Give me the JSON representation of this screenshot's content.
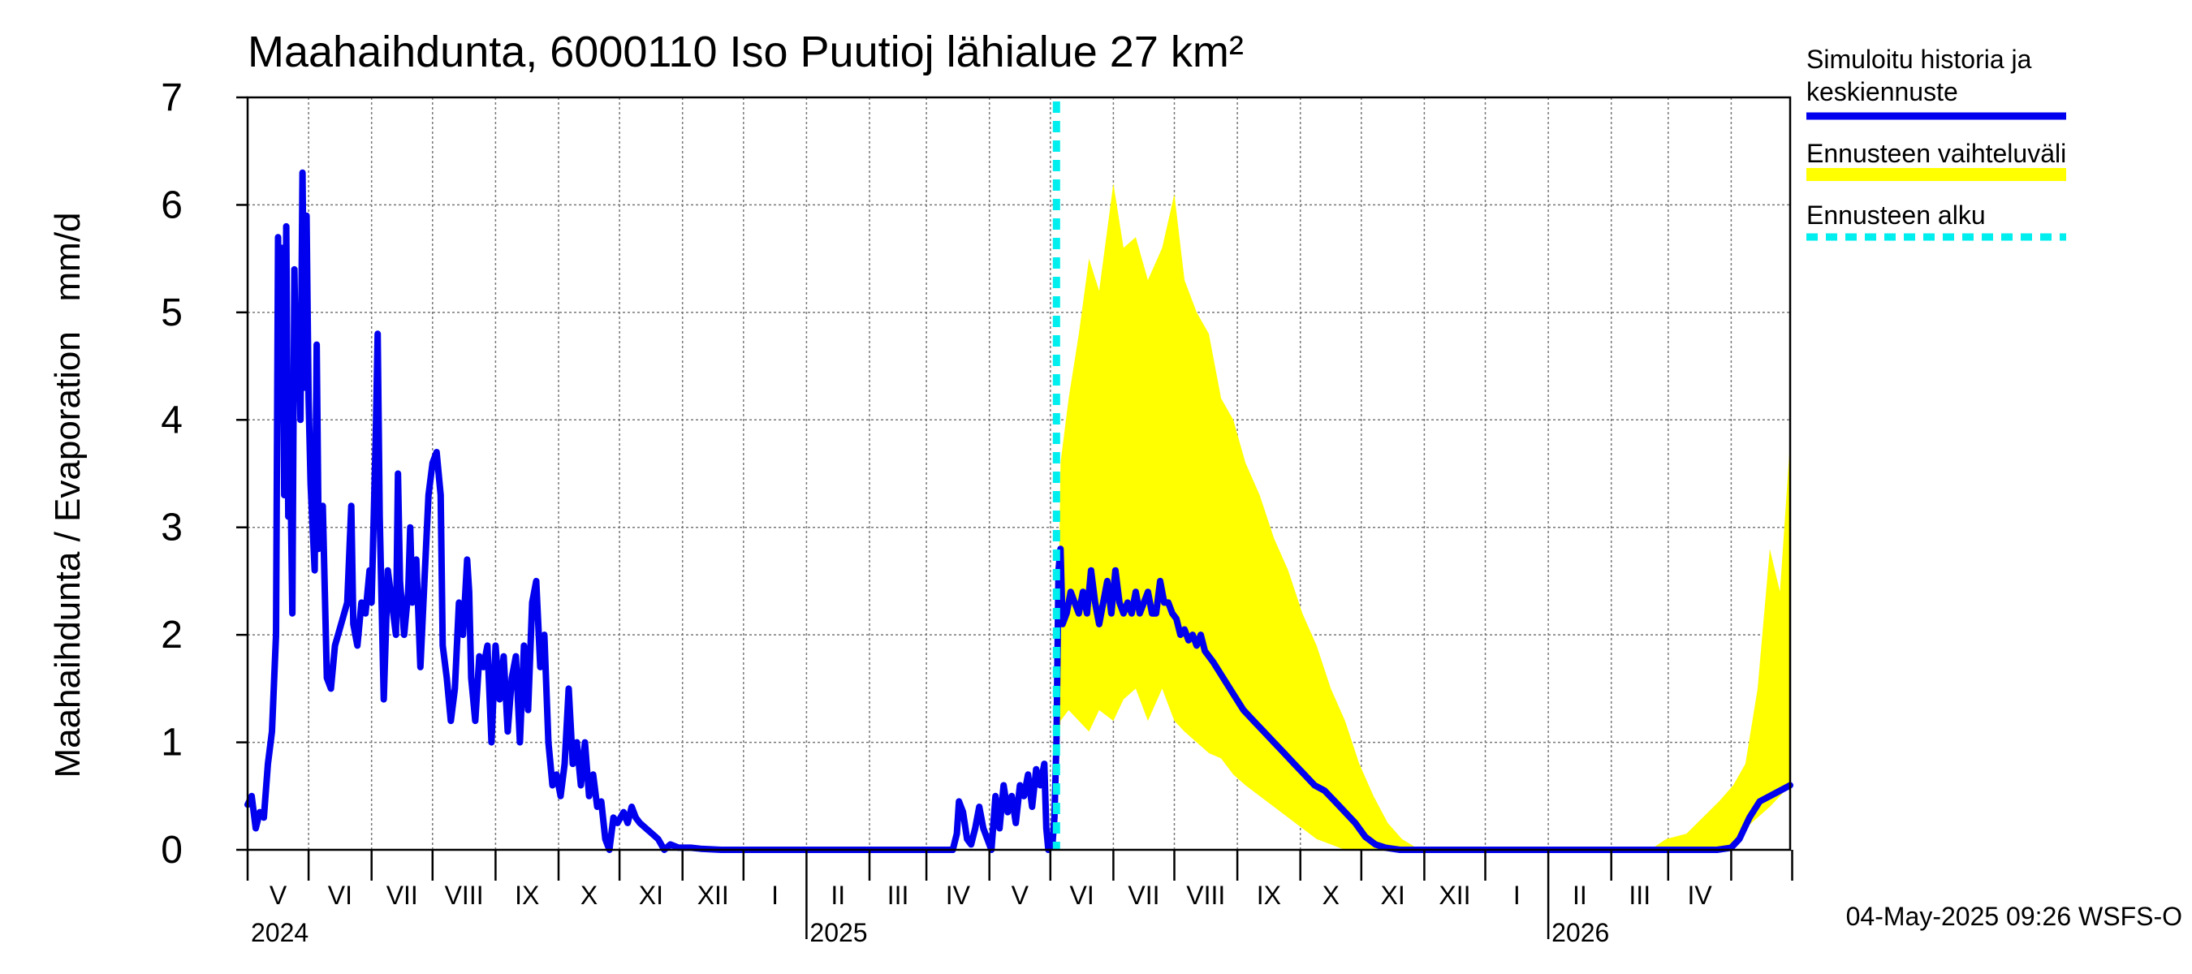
{
  "chart_data": {
    "type": "line",
    "title": "Maahaihdunta, 6000110 Iso Puutioj lähialue 27 km²",
    "ylabel": "Maahaihdunta / Evaporation   mm/d",
    "xlabel": "",
    "ylim": [
      0,
      7
    ],
    "yticks": [
      "0",
      "1",
      "2",
      "3",
      "4",
      "5",
      "6",
      "7"
    ],
    "xlim": [
      "2024-04-01",
      "2026-04-30"
    ],
    "grid": true,
    "legend_position": "right",
    "month_labels": [
      "V",
      "VI",
      "VII",
      "VIII",
      "IX",
      "X",
      "XI",
      "XII",
      "I",
      "II",
      "III",
      "IV",
      "V",
      "VI",
      "VII",
      "VIII",
      "IX",
      "X",
      "XI",
      "XII",
      "I",
      "II",
      "III",
      "IV"
    ],
    "year_labels": [
      "2024",
      "2025",
      "2026"
    ],
    "footer": "04-May-2025 09:26 WSFS-O",
    "colors": {
      "history": "#0000ee",
      "range": "#ffff00",
      "forecast_start": "#00eeee",
      "grid": "#777777"
    },
    "forecast_start": "2025-05-04",
    "legend": [
      {
        "label_line1": "Simuloitu historia ja",
        "label_line2": "keskiennuste"
      },
      {
        "label_line1": "Ennusteen vaihteluväli",
        "label_line2": ""
      },
      {
        "label_line1": "Ennusteen alku",
        "label_line2": ""
      }
    ],
    "series": [
      {
        "name": "Simuloitu historia ja keskiennuste",
        "points": [
          [
            "2024-04-01",
            0.42
          ],
          [
            "2024-04-03",
            0.5
          ],
          [
            "2024-04-05",
            0.2
          ],
          [
            "2024-04-07",
            0.35
          ],
          [
            "2024-04-09",
            0.3
          ],
          [
            "2024-04-11",
            0.8
          ],
          [
            "2024-04-13",
            1.1
          ],
          [
            "2024-04-15",
            2.0
          ],
          [
            "2024-04-16",
            5.7
          ],
          [
            "2024-04-17",
            4.0
          ],
          [
            "2024-04-18",
            5.6
          ],
          [
            "2024-04-19",
            3.3
          ],
          [
            "2024-04-20",
            5.8
          ],
          [
            "2024-04-21",
            3.1
          ],
          [
            "2024-04-22",
            3.6
          ],
          [
            "2024-04-23",
            2.2
          ],
          [
            "2024-04-24",
            5.4
          ],
          [
            "2024-04-25",
            4.2
          ],
          [
            "2024-04-26",
            5.0
          ],
          [
            "2024-04-27",
            4.0
          ],
          [
            "2024-04-28",
            6.3
          ],
          [
            "2024-04-29",
            4.3
          ],
          [
            "2024-04-30",
            5.9
          ],
          [
            "2024-05-01",
            4.2
          ],
          [
            "2024-05-02",
            3.4
          ],
          [
            "2024-05-03",
            3.0
          ],
          [
            "2024-05-04",
            2.6
          ],
          [
            "2024-05-05",
            4.7
          ],
          [
            "2024-05-06",
            2.8
          ],
          [
            "2024-05-08",
            3.2
          ],
          [
            "2024-05-10",
            1.6
          ],
          [
            "2024-05-12",
            1.5
          ],
          [
            "2024-05-14",
            1.9
          ],
          [
            "2024-05-17",
            2.1
          ],
          [
            "2024-05-20",
            2.3
          ],
          [
            "2024-05-22",
            3.2
          ],
          [
            "2024-05-23",
            2.1
          ],
          [
            "2024-05-25",
            1.9
          ],
          [
            "2024-05-27",
            2.3
          ],
          [
            "2024-05-29",
            2.2
          ],
          [
            "2024-05-31",
            2.6
          ],
          [
            "2024-06-01",
            2.3
          ],
          [
            "2024-06-03",
            3.8
          ],
          [
            "2024-06-04",
            4.8
          ],
          [
            "2024-06-05",
            3.1
          ],
          [
            "2024-06-07",
            1.4
          ],
          [
            "2024-06-09",
            2.6
          ],
          [
            "2024-06-11",
            2.3
          ],
          [
            "2024-06-13",
            2.0
          ],
          [
            "2024-06-14",
            3.5
          ],
          [
            "2024-06-15",
            2.5
          ],
          [
            "2024-06-17",
            2.0
          ],
          [
            "2024-06-19",
            2.4
          ],
          [
            "2024-06-20",
            3.0
          ],
          [
            "2024-06-21",
            2.3
          ],
          [
            "2024-06-23",
            2.7
          ],
          [
            "2024-06-25",
            1.7
          ],
          [
            "2024-06-27",
            2.5
          ],
          [
            "2024-06-29",
            3.3
          ],
          [
            "2024-07-01",
            3.6
          ],
          [
            "2024-07-03",
            3.7
          ],
          [
            "2024-07-05",
            3.3
          ],
          [
            "2024-07-06",
            1.9
          ],
          [
            "2024-07-08",
            1.6
          ],
          [
            "2024-07-10",
            1.2
          ],
          [
            "2024-07-12",
            1.5
          ],
          [
            "2024-07-14",
            2.3
          ],
          [
            "2024-07-16",
            2.0
          ],
          [
            "2024-07-18",
            2.7
          ],
          [
            "2024-07-19",
            2.4
          ],
          [
            "2024-07-20",
            1.6
          ],
          [
            "2024-07-22",
            1.2
          ],
          [
            "2024-07-24",
            1.8
          ],
          [
            "2024-07-26",
            1.7
          ],
          [
            "2024-07-28",
            1.9
          ],
          [
            "2024-07-30",
            1.0
          ],
          [
            "2024-08-01",
            1.9
          ],
          [
            "2024-08-03",
            1.4
          ],
          [
            "2024-08-05",
            1.8
          ],
          [
            "2024-08-07",
            1.1
          ],
          [
            "2024-08-09",
            1.6
          ],
          [
            "2024-08-11",
            1.8
          ],
          [
            "2024-08-13",
            1.0
          ],
          [
            "2024-08-15",
            1.9
          ],
          [
            "2024-08-17",
            1.3
          ],
          [
            "2024-08-19",
            2.3
          ],
          [
            "2024-08-21",
            2.5
          ],
          [
            "2024-08-23",
            1.7
          ],
          [
            "2024-08-25",
            2.0
          ],
          [
            "2024-08-27",
            1.0
          ],
          [
            "2024-08-29",
            0.6
          ],
          [
            "2024-08-31",
            0.7
          ],
          [
            "2024-09-02",
            0.5
          ],
          [
            "2024-09-04",
            0.8
          ],
          [
            "2024-09-06",
            1.5
          ],
          [
            "2024-09-08",
            0.8
          ],
          [
            "2024-09-10",
            1.0
          ],
          [
            "2024-09-12",
            0.6
          ],
          [
            "2024-09-14",
            1.0
          ],
          [
            "2024-09-16",
            0.5
          ],
          [
            "2024-09-18",
            0.7
          ],
          [
            "2024-09-20",
            0.4
          ],
          [
            "2024-09-22",
            0.45
          ],
          [
            "2024-09-24",
            0.1
          ],
          [
            "2024-09-26",
            0.0
          ],
          [
            "2024-09-28",
            0.3
          ],
          [
            "2024-09-30",
            0.25
          ],
          [
            "2024-10-03",
            0.35
          ],
          [
            "2024-10-05",
            0.25
          ],
          [
            "2024-10-07",
            0.4
          ],
          [
            "2024-10-09",
            0.3
          ],
          [
            "2024-10-11",
            0.25
          ],
          [
            "2024-10-14",
            0.2
          ],
          [
            "2024-10-17",
            0.15
          ],
          [
            "2024-10-20",
            0.1
          ],
          [
            "2024-10-23",
            0.0
          ],
          [
            "2024-10-26",
            0.05
          ],
          [
            "2024-10-30",
            0.02
          ],
          [
            "2024-11-05",
            0.02
          ],
          [
            "2024-11-10",
            0.01
          ],
          [
            "2024-11-20",
            0.0
          ],
          [
            "2025-02-15",
            0.0
          ],
          [
            "2025-03-10",
            0.0
          ],
          [
            "2025-03-14",
            0.0
          ],
          [
            "2025-03-16",
            0.15
          ],
          [
            "2025-03-17",
            0.45
          ],
          [
            "2025-03-19",
            0.35
          ],
          [
            "2025-03-21",
            0.1
          ],
          [
            "2025-03-23",
            0.05
          ],
          [
            "2025-03-25",
            0.2
          ],
          [
            "2025-03-27",
            0.4
          ],
          [
            "2025-03-29",
            0.2
          ],
          [
            "2025-03-31",
            0.1
          ],
          [
            "2025-04-02",
            0.0
          ],
          [
            "2025-04-04",
            0.5
          ],
          [
            "2025-04-06",
            0.2
          ],
          [
            "2025-04-08",
            0.6
          ],
          [
            "2025-04-10",
            0.35
          ],
          [
            "2025-04-12",
            0.5
          ],
          [
            "2025-04-14",
            0.25
          ],
          [
            "2025-04-16",
            0.6
          ],
          [
            "2025-04-18",
            0.5
          ],
          [
            "2025-04-20",
            0.7
          ],
          [
            "2025-04-22",
            0.4
          ],
          [
            "2025-04-24",
            0.75
          ],
          [
            "2025-04-26",
            0.6
          ],
          [
            "2025-04-28",
            0.8
          ],
          [
            "2025-04-29",
            0.2
          ],
          [
            "2025-04-30",
            0.0
          ],
          [
            "2025-05-02",
            0.05
          ],
          [
            "2025-05-03",
            0.3
          ],
          [
            "2025-05-04",
            1.0
          ],
          [
            "2025-05-05",
            2.6
          ],
          [
            "2025-05-06",
            2.8
          ],
          [
            "2025-05-07",
            2.1
          ],
          [
            "2025-05-09",
            2.2
          ],
          [
            "2025-05-11",
            2.4
          ],
          [
            "2025-05-13",
            2.3
          ],
          [
            "2025-05-15",
            2.2
          ],
          [
            "2025-05-17",
            2.4
          ],
          [
            "2025-05-19",
            2.2
          ],
          [
            "2025-05-21",
            2.6
          ],
          [
            "2025-05-23",
            2.3
          ],
          [
            "2025-05-25",
            2.1
          ],
          [
            "2025-05-27",
            2.3
          ],
          [
            "2025-05-29",
            2.5
          ],
          [
            "2025-05-31",
            2.2
          ],
          [
            "2025-06-02",
            2.6
          ],
          [
            "2025-06-04",
            2.3
          ],
          [
            "2025-06-06",
            2.2
          ],
          [
            "2025-06-08",
            2.3
          ],
          [
            "2025-06-10",
            2.2
          ],
          [
            "2025-06-12",
            2.4
          ],
          [
            "2025-06-14",
            2.2
          ],
          [
            "2025-06-16",
            2.3
          ],
          [
            "2025-06-18",
            2.4
          ],
          [
            "2025-06-20",
            2.2
          ],
          [
            "2025-06-22",
            2.2
          ],
          [
            "2025-06-24",
            2.5
          ],
          [
            "2025-06-26",
            2.3
          ],
          [
            "2025-06-28",
            2.3
          ],
          [
            "2025-06-30",
            2.2
          ],
          [
            "2025-07-02",
            2.15
          ],
          [
            "2025-07-04",
            2.0
          ],
          [
            "2025-07-06",
            2.05
          ],
          [
            "2025-07-08",
            1.95
          ],
          [
            "2025-07-10",
            2.0
          ],
          [
            "2025-07-12",
            1.9
          ],
          [
            "2025-07-14",
            2.0
          ],
          [
            "2025-07-16",
            1.85
          ],
          [
            "2025-07-20",
            1.75
          ],
          [
            "2025-07-25",
            1.6
          ],
          [
            "2025-07-30",
            1.45
          ],
          [
            "2025-08-04",
            1.3
          ],
          [
            "2025-08-09",
            1.2
          ],
          [
            "2025-08-14",
            1.1
          ],
          [
            "2025-08-19",
            1.0
          ],
          [
            "2025-08-24",
            0.9
          ],
          [
            "2025-08-29",
            0.8
          ],
          [
            "2025-09-03",
            0.7
          ],
          [
            "2025-09-08",
            0.6
          ],
          [
            "2025-09-13",
            0.55
          ],
          [
            "2025-09-18",
            0.45
          ],
          [
            "2025-09-23",
            0.35
          ],
          [
            "2025-09-28",
            0.25
          ],
          [
            "2025-10-03",
            0.12
          ],
          [
            "2025-10-08",
            0.05
          ],
          [
            "2025-10-13",
            0.02
          ],
          [
            "2025-10-20",
            0.0
          ],
          [
            "2026-03-25",
            0.0
          ],
          [
            "2026-04-01",
            0.02
          ],
          [
            "2026-04-05",
            0.1
          ],
          [
            "2026-04-10",
            0.3
          ],
          [
            "2026-04-15",
            0.45
          ],
          [
            "2026-04-20",
            0.5
          ],
          [
            "2026-04-25",
            0.55
          ],
          [
            "2026-04-30",
            0.6
          ]
        ]
      },
      {
        "name": "Ennusteen vaihteluväli",
        "band": [
          [
            "2025-05-04",
            0.3,
            1.0
          ],
          [
            "2025-05-06",
            1.2,
            3.6
          ],
          [
            "2025-05-10",
            1.3,
            4.2
          ],
          [
            "2025-05-15",
            1.2,
            4.8
          ],
          [
            "2025-05-20",
            1.1,
            5.5
          ],
          [
            "2025-05-25",
            1.3,
            5.2
          ],
          [
            "2025-06-01",
            1.2,
            6.2
          ],
          [
            "2025-06-06",
            1.4,
            5.6
          ],
          [
            "2025-06-12",
            1.5,
            5.7
          ],
          [
            "2025-06-18",
            1.2,
            5.3
          ],
          [
            "2025-06-25",
            1.5,
            5.6
          ],
          [
            "2025-07-01",
            1.2,
            6.1
          ],
          [
            "2025-07-06",
            1.1,
            5.3
          ],
          [
            "2025-07-12",
            1.0,
            5.0
          ],
          [
            "2025-07-18",
            0.9,
            4.8
          ],
          [
            "2025-07-24",
            0.85,
            4.2
          ],
          [
            "2025-07-30",
            0.7,
            4.0
          ],
          [
            "2025-08-05",
            0.6,
            3.6
          ],
          [
            "2025-08-12",
            0.5,
            3.3
          ],
          [
            "2025-08-19",
            0.4,
            2.9
          ],
          [
            "2025-08-26",
            0.3,
            2.6
          ],
          [
            "2025-09-02",
            0.2,
            2.2
          ],
          [
            "2025-09-09",
            0.1,
            1.9
          ],
          [
            "2025-09-16",
            0.05,
            1.5
          ],
          [
            "2025-09-23",
            0.0,
            1.2
          ],
          [
            "2025-09-30",
            0.0,
            0.8
          ],
          [
            "2025-10-07",
            0.0,
            0.5
          ],
          [
            "2025-10-14",
            0.0,
            0.25
          ],
          [
            "2025-10-21",
            0.0,
            0.1
          ],
          [
            "2025-10-28",
            0.0,
            0.02
          ],
          [
            "2026-02-20",
            0.0,
            0.0
          ],
          [
            "2026-02-28",
            0.0,
            0.1
          ],
          [
            "2026-03-10",
            0.0,
            0.15
          ],
          [
            "2026-03-18",
            0.0,
            0.3
          ],
          [
            "2026-03-26",
            0.02,
            0.45
          ],
          [
            "2026-04-02",
            0.05,
            0.6
          ],
          [
            "2026-04-08",
            0.2,
            0.8
          ],
          [
            "2026-04-14",
            0.3,
            1.5
          ],
          [
            "2026-04-20",
            0.4,
            2.8
          ],
          [
            "2026-04-25",
            0.5,
            2.4
          ],
          [
            "2026-04-30",
            0.6,
            3.8
          ]
        ]
      }
    ]
  }
}
